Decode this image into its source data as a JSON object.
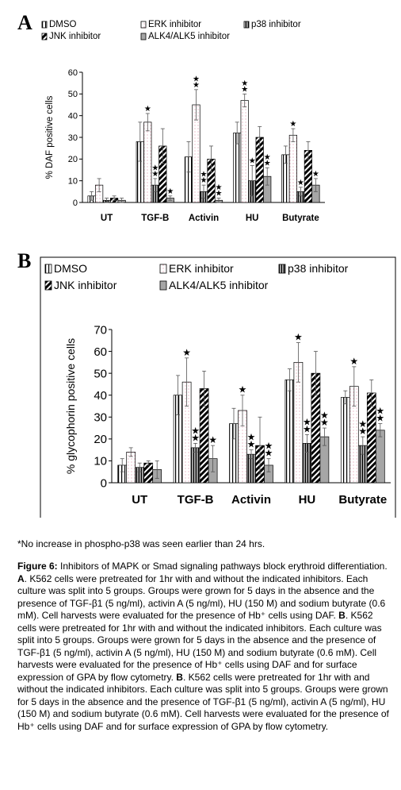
{
  "panel_a": {
    "letter": "A"
  },
  "panel_b": {
    "letter": "B"
  },
  "note": "*No increase in phospho-p38 was seen earlier than 24 hrs.",
  "caption": {
    "title": "Figure 6:",
    "title_rest": " Inhibitors of MAPK or Smad signaling pathways block erythroid differentiation.",
    "a_label": "A",
    "a_text": ". K562 cells were pretreated for 1hr with and without the indicated inhibitors. Each culture was split into 5 groups. Groups were grown for 5 days in the absence and the presence of TGF-β1 (5 ng/ml), activin A (5 ng/ml), HU (150 M) and sodium butyrate (0.6 mM). Cell harvests were evaluated for the presence of Hb⁺ cells using DAF. ",
    "b_label": "B",
    "b_text": ". K562 cells were pretreated for 1hr with and without the indicated inhibitors. Each culture was split into 5 groups. Groups were grown for 5 days in the absence and the presence of TGF-β1 (5 ng/ml), activin A (5 ng/ml), HU (150 M) and sodium butyrate (0.6 mM). Cell harvests were evaluated for the presence of Hb⁺ cells using DAF  and for surface expression of GPA by flow cytometry. ",
    "b2_label": "B",
    "b2_text": ". K562 cells were pretreated for 1hr with and without the indicated inhibitors. Each culture was split into 5 groups. Groups were grown for 5 days in the absence and the presence of TGF-β1 (5 ng/ml), activin A (5 ng/ml), HU (150 M) and sodium butyrate (0.6 mM). Cell harvests were evaluated for the presence of Hb⁺ cells using DAF and for surface expression of GPA by flow cytometry."
  },
  "chart_data": [
    {
      "type": "bar",
      "panel": "A",
      "title": "",
      "xlabel": "",
      "ylabel": "% DAF positive cells",
      "ylim": [
        0,
        60
      ],
      "yticks": [
        0,
        10,
        20,
        30,
        40,
        50,
        60
      ],
      "categories": [
        "UT",
        "TGF-B",
        "Activin",
        "HU",
        "Butyrate"
      ],
      "grid": false,
      "legend": "top",
      "series": [
        {
          "name": "DMSO",
          "pattern": "vstripe",
          "values": [
            3,
            28,
            21,
            32,
            22
          ],
          "errors": [
            2,
            9,
            7,
            5,
            4
          ],
          "stars": [
            0,
            0,
            0,
            0,
            0
          ]
        },
        {
          "name": "ERK inhibitor",
          "pattern": "dots",
          "values": [
            8,
            37,
            45,
            47,
            31
          ],
          "errors": [
            3,
            4,
            7,
            3,
            3
          ],
          "stars": [
            0,
            1,
            2,
            2,
            1
          ]
        },
        {
          "name": "p38 inhibitor",
          "pattern": "vstripe-dense",
          "values": [
            1,
            8,
            5,
            10,
            5
          ],
          "errors": [
            1,
            3,
            3,
            7,
            2
          ],
          "stars": [
            0,
            2,
            2,
            1,
            1
          ]
        },
        {
          "name": "JNK inhibitor",
          "pattern": "diagonal",
          "values": [
            2,
            26,
            20,
            30,
            24
          ],
          "errors": [
            1,
            8,
            6,
            5,
            4
          ],
          "stars": [
            0,
            0,
            0,
            0,
            0
          ]
        },
        {
          "name": "ALK4/ALK5 inhibitor",
          "pattern": "gray",
          "values": [
            1,
            2,
            1,
            12,
            8
          ],
          "errors": [
            1,
            1,
            1,
            4,
            3
          ],
          "stars": [
            0,
            1,
            2,
            2,
            1
          ]
        }
      ]
    },
    {
      "type": "bar",
      "panel": "B",
      "title": "",
      "xlabel": "",
      "ylabel": "% glycophorin positive cells",
      "ylim": [
        0,
        70
      ],
      "yticks": [
        0,
        10,
        20,
        30,
        40,
        50,
        60,
        70
      ],
      "categories": [
        "UT",
        "TGF-B",
        "Activin",
        "HU",
        "Butyrate"
      ],
      "grid": false,
      "legend": "top",
      "series": [
        {
          "name": "DMSO",
          "pattern": "vstripe",
          "values": [
            8,
            40,
            27,
            47,
            39
          ],
          "errors": [
            3,
            9,
            7,
            5,
            3
          ],
          "stars": [
            0,
            0,
            0,
            0,
            0
          ]
        },
        {
          "name": "ERK inhibitor",
          "pattern": "dots",
          "values": [
            14,
            46,
            33,
            55,
            44
          ],
          "errors": [
            2,
            11,
            7,
            9,
            9
          ],
          "stars": [
            0,
            1,
            1,
            1,
            1
          ]
        },
        {
          "name": "p38 inhibitor",
          "pattern": "vstripe-dense",
          "values": [
            7,
            16,
            13,
            18,
            17
          ],
          "errors": [
            2,
            2,
            2,
            4,
            4
          ],
          "stars": [
            0,
            2,
            2,
            2,
            2
          ]
        },
        {
          "name": "JNK inhibitor",
          "pattern": "diagonal",
          "values": [
            9,
            43,
            17,
            50,
            41
          ],
          "errors": [
            1,
            8,
            13,
            10,
            6
          ],
          "stars": [
            0,
            0,
            0,
            0,
            0
          ]
        },
        {
          "name": "ALK4/ALK5 inhibitor",
          "pattern": "gray",
          "values": [
            6,
            11,
            8,
            21,
            24
          ],
          "errors": [
            4,
            6,
            3,
            4,
            3
          ],
          "stars": [
            0,
            1,
            2,
            2,
            2
          ]
        }
      ]
    }
  ]
}
